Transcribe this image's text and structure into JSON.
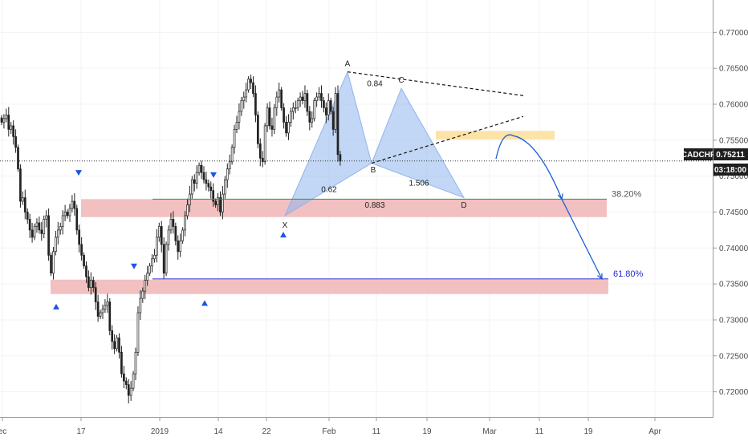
{
  "chart_data": {
    "type": "candlestick",
    "symbol": "CADCHF",
    "last_price": "0.75211",
    "countdown": "03:18:00",
    "ylim": [
      0.7165,
      0.7745
    ],
    "y_ticks": [
      0.72,
      0.725,
      0.73,
      0.735,
      0.74,
      0.745,
      0.75,
      0.755,
      0.76,
      0.765,
      0.77
    ],
    "y_tick_labels": [
      "0.72000",
      "0.72500",
      "0.73000",
      "0.73500",
      "0.74000",
      "0.74500",
      "0.75000",
      "0.75500",
      "0.76000",
      "0.76500",
      "0.77000"
    ],
    "x_ticks": [
      {
        "label": "ec",
        "x": 3
      },
      {
        "label": "17",
        "x": 101
      },
      {
        "label": "2019",
        "x": 199
      },
      {
        "label": "14",
        "x": 272
      },
      {
        "label": "22",
        "x": 332
      },
      {
        "label": "Feb",
        "x": 410
      },
      {
        "label": "11",
        "x": 469
      },
      {
        "label": "19",
        "x": 532
      },
      {
        "label": "Mar",
        "x": 610
      },
      {
        "label": "11",
        "x": 672
      },
      {
        "label": "19",
        "x": 733
      },
      {
        "label": "Apr",
        "x": 816
      }
    ],
    "candles": {
      "x_start": 2,
      "x_step": 2.93,
      "closes": [
        0.7575,
        0.758,
        0.7585,
        0.7565,
        0.757,
        0.7555,
        0.754,
        0.751,
        0.7465,
        0.747,
        0.745,
        0.744,
        0.7425,
        0.7415,
        0.743,
        0.7435,
        0.7425,
        0.742,
        0.744,
        0.7445,
        0.739,
        0.7365,
        0.7395,
        0.7415,
        0.7425,
        0.743,
        0.7445,
        0.745,
        0.7445,
        0.7455,
        0.7465,
        0.7455,
        0.7425,
        0.7405,
        0.739,
        0.7375,
        0.736,
        0.7345,
        0.7355,
        0.7345,
        0.7325,
        0.7305,
        0.731,
        0.7315,
        0.732,
        0.7325,
        0.7285,
        0.727,
        0.726,
        0.7275,
        0.7255,
        0.7225,
        0.7215,
        0.721,
        0.7195,
        0.7205,
        0.7225,
        0.7255,
        0.731,
        0.733,
        0.734,
        0.7355,
        0.7365,
        0.7375,
        0.7385,
        0.739,
        0.7415,
        0.743,
        0.7405,
        0.7365,
        0.7405,
        0.7425,
        0.744,
        0.743,
        0.741,
        0.7395,
        0.741,
        0.7425,
        0.7445,
        0.746,
        0.7475,
        0.7495,
        0.749,
        0.7505,
        0.7515,
        0.7505,
        0.7495,
        0.749,
        0.7485,
        0.748,
        0.7465,
        0.746,
        0.747,
        0.745,
        0.7475,
        0.7495,
        0.751,
        0.752,
        0.754,
        0.7565,
        0.7575,
        0.759,
        0.7605,
        0.761,
        0.762,
        0.7635,
        0.763,
        0.7615,
        0.7585,
        0.7545,
        0.7525,
        0.752,
        0.757,
        0.7595,
        0.757,
        0.7565,
        0.7595,
        0.761,
        0.762,
        0.7595,
        0.7575,
        0.756,
        0.7575,
        0.759,
        0.7595,
        0.7595,
        0.7605,
        0.761,
        0.7605,
        0.7615,
        0.759,
        0.7575,
        0.758,
        0.7605,
        0.761,
        0.7615,
        0.7605,
        0.7595,
        0.7585,
        0.7605,
        0.759,
        0.7565,
        0.7615,
        0.753,
        0.7521
      ]
    },
    "patterns": [
      {
        "points": [
          {
            "x": 355,
            "y": 0.7445
          },
          {
            "x": 433,
            "y": 0.7645
          },
          {
            "x": 463,
            "y": 0.7518
          }
        ],
        "color": "#90b4ec"
      },
      {
        "points": [
          {
            "x": 463,
            "y": 0.7518
          },
          {
            "x": 500,
            "y": 0.7622
          },
          {
            "x": 578,
            "y": 0.747
          }
        ],
        "color": "#90b4ec"
      }
    ],
    "point_labels": [
      {
        "text": "A",
        "x": 433,
        "y": 0.7653
      },
      {
        "text": "C",
        "x": 500,
        "y": 0.763
      },
      {
        "text": "B",
        "x": 465,
        "y": 0.7505
      },
      {
        "text": "X",
        "x": 355,
        "y": 0.7428
      },
      {
        "text": "D",
        "x": 578,
        "y": 0.7456
      }
    ],
    "ratio_labels": [
      {
        "text": "0.84",
        "x": 467,
        "y": 0.7625
      },
      {
        "text": "0.62",
        "x": 410,
        "y": 0.7478
      },
      {
        "text": "1.506",
        "x": 522,
        "y": 0.7487
      },
      {
        "text": "0.883",
        "x": 467,
        "y": 0.7456
      }
    ],
    "zones": [
      {
        "x1": 101,
        "x2": 756,
        "y_top": 0.7468,
        "y_bottom": 0.7443,
        "color": "#f2c0c0"
      },
      {
        "x1": 63,
        "x2": 758,
        "y_top": 0.7356,
        "y_bottom": 0.7336,
        "color": "#f2c0c0"
      },
      {
        "x1": 543,
        "x2": 691,
        "y_top": 0.7563,
        "y_bottom": 0.7551,
        "color": "#fde3a7"
      }
    ],
    "fib_levels": [
      {
        "label": "38.20%",
        "y": 0.7468,
        "x1": 190,
        "x2": 756,
        "color": "#3f8f3f",
        "label_color": "#555555"
      },
      {
        "label": "61.80%",
        "y": 0.7357,
        "x1": 190,
        "x2": 758,
        "color": "#2626cc",
        "label_color": "#2626cc"
      }
    ],
    "trendlines": [
      {
        "x1": 433,
        "y1": 0.7645,
        "x2": 652,
        "y2": 0.7612
      },
      {
        "x1": 463,
        "y1": 0.7518,
        "x2": 652,
        "y2": 0.7583
      }
    ],
    "projection": [
      {
        "x": 618,
        "y": 0.7524
      },
      {
        "x": 640,
        "y": 0.7556
      },
      {
        "x": 680,
        "y": 0.7515
      },
      {
        "x": 700,
        "y": 0.7468
      },
      {
        "x": 750,
        "y": 0.7357
      }
    ],
    "markers": [
      {
        "dir": "down",
        "x": 98,
        "y": 0.7505
      },
      {
        "dir": "down",
        "x": 266,
        "y": 0.7502
      },
      {
        "dir": "down",
        "x": 167,
        "y": 0.7375
      },
      {
        "dir": "up",
        "x": 70,
        "y": 0.7318
      },
      {
        "dir": "up",
        "x": 255,
        "y": 0.7323
      },
      {
        "dir": "up",
        "x": 353,
        "y": 0.7418
      }
    ]
  }
}
